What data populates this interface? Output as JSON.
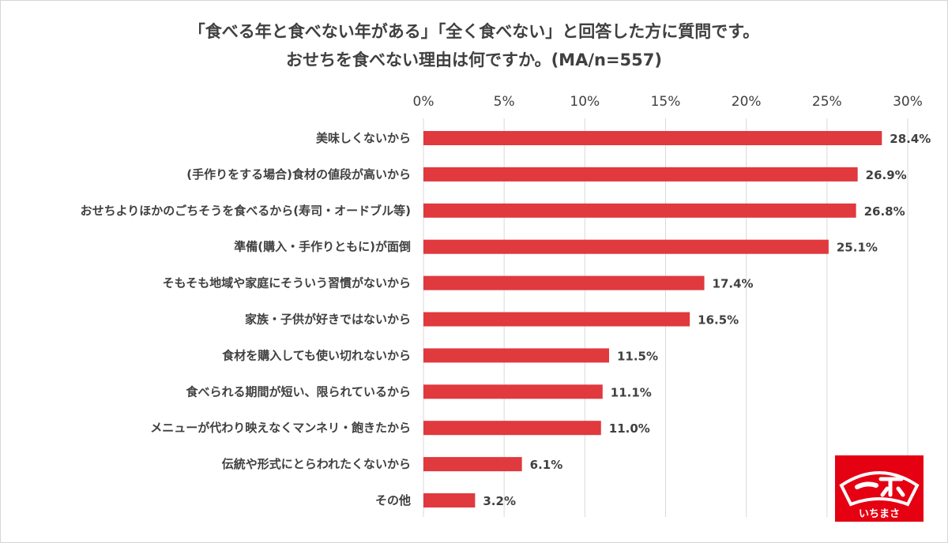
{
  "title": {
    "line1": "「食べる年と食べない年がある」「全く食べない」と回答した方に質問です。",
    "line2": "おせちを食べない理由は何ですか。(MA/n=557)"
  },
  "logo": {
    "text": "いちまさ"
  },
  "colors": {
    "bar": "#e0393e",
    "grid": "#d9d9d9",
    "text": "#404040",
    "logo": "#e50012"
  },
  "chart_data": {
    "type": "bar",
    "orientation": "horizontal",
    "title": "「食べる年と食べない年がある」「全く食べない」と回答した方に質問です。 おせちを食べない理由は何ですか。(MA/n=557)",
    "xlim": [
      0,
      30
    ],
    "ticks": [
      "0%",
      "5%",
      "10%",
      "15%",
      "20%",
      "25%",
      "30%"
    ],
    "tick_values": [
      0,
      5,
      10,
      15,
      20,
      25,
      30
    ],
    "grid": true,
    "categories": [
      "美味しくないから",
      "(手作りをする場合)食材の値段が高いから",
      "おせちよりほかのごちそうを食べるから(寿司・オードブル等)",
      "準備(購入・手作りともに)が面倒",
      "そもそも地域や家庭にそういう習慣がないから",
      "家族・子供が好きではないから",
      "食材を購入しても使い切れないから",
      "食べられる期間が短い、限られているから",
      "メニューが代わり映えなくマンネリ・飽きたから",
      "伝統や形式にとらわれたくないから",
      "その他"
    ],
    "values": [
      28.4,
      26.9,
      26.8,
      25.1,
      17.4,
      16.5,
      11.5,
      11.1,
      11.0,
      6.1,
      3.2
    ],
    "labels": [
      "28.4%",
      "26.9%",
      "26.8%",
      "25.1%",
      "17.4%",
      "16.5%",
      "11.5%",
      "11.1%",
      "11.0%",
      "6.1%",
      "3.2%"
    ]
  }
}
